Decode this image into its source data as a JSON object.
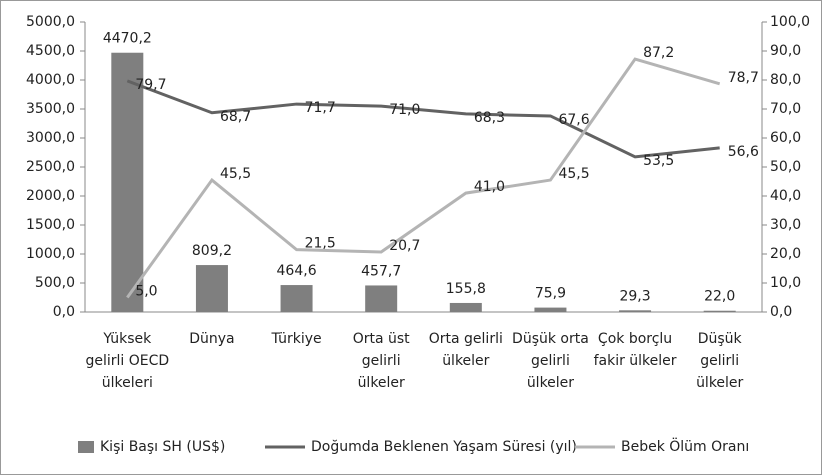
{
  "chart_data": {
    "type": "bar_line",
    "categories": [
      "Yüksek gelirli OECD ülkeleri",
      "Dünya",
      "Türkiye",
      "Orta üst gelirli ülkeler",
      "Orta gelirli ülkeler",
      "Düşük orta gelirli ülkeler",
      "Çok borçlu fakir ülkeler",
      "Düşük gelirli ülkeler"
    ],
    "series": [
      {
        "name": "Kişi Başı SH (US$)",
        "type": "bar",
        "color": "#7f7f7f",
        "values": [
          4470.2,
          809.2,
          464.6,
          457.7,
          155.8,
          75.9,
          29.3,
          22.0
        ],
        "value_labels": [
          "4470,2",
          "809,2",
          "464,6",
          "457,7",
          "155,8",
          "75,9",
          "29,3",
          "22,0"
        ]
      },
      {
        "name": "Doğumda Beklenen Yaşam Süresi (yıl)",
        "type": "line",
        "axis": "y2",
        "color": "#626262",
        "values": [
          79.7,
          68.7,
          71.7,
          71.0,
          68.3,
          67.6,
          53.5,
          56.6
        ],
        "value_labels": [
          "79,7",
          "68,7",
          "71,7",
          "71,0",
          "68,3",
          "67,6",
          "53,5",
          "56,6"
        ]
      },
      {
        "name": "Bebek Ölüm Oranı",
        "type": "line",
        "axis": "y2",
        "color": "#b4b4b4",
        "values": [
          5.0,
          45.5,
          21.5,
          20.7,
          41.0,
          45.5,
          87.2,
          78.7
        ],
        "value_labels": [
          "5,0",
          "45,5",
          "21,5",
          "20,7",
          "41,0",
          "45,5",
          "87,2",
          "78,7"
        ]
      }
    ],
    "ylim": [
      0,
      5000
    ],
    "yticks": [
      {
        "value": 0,
        "label": "0,0"
      },
      {
        "value": 500,
        "label": "500,0"
      },
      {
        "value": 1000,
        "label": "1000,0"
      },
      {
        "value": 1500,
        "label": "1500,0"
      },
      {
        "value": 2000,
        "label": "2000,0"
      },
      {
        "value": 2500,
        "label": "2500,0"
      },
      {
        "value": 3000,
        "label": "3000,0"
      },
      {
        "value": 3500,
        "label": "3500,0"
      },
      {
        "value": 4000,
        "label": "4000,0"
      },
      {
        "value": 4500,
        "label": "4500,0"
      },
      {
        "value": 5000,
        "label": "5000,0"
      }
    ],
    "y2lim": [
      0,
      100
    ],
    "y2ticks": [
      {
        "value": 0,
        "label": "0,0"
      },
      {
        "value": 10,
        "label": "10,0"
      },
      {
        "value": 20,
        "label": "20,0"
      },
      {
        "value": 30,
        "label": "30,0"
      },
      {
        "value": 40,
        "label": "40,0"
      },
      {
        "value": 50,
        "label": "50,0"
      },
      {
        "value": 60,
        "label": "60,0"
      },
      {
        "value": 70,
        "label": "70,0"
      },
      {
        "value": 80,
        "label": "80,0"
      },
      {
        "value": 90,
        "label": "90,0"
      },
      {
        "value": 100,
        "label": "100,0"
      }
    ],
    "grid": false,
    "legend": "bottom"
  }
}
